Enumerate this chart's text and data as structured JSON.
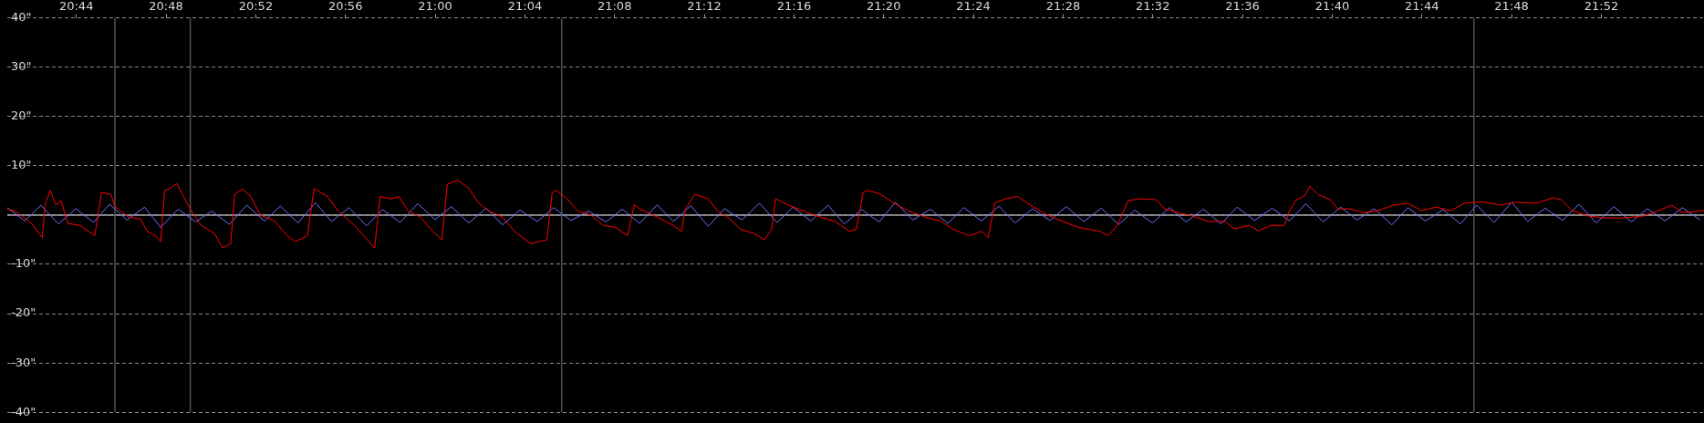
{
  "chart_data": {
    "type": "line",
    "xlim": [
      20.682,
      21.943
    ],
    "xticks": [
      {
        "value": 20.7333,
        "label": "20:44"
      },
      {
        "value": 20.8,
        "label": "20:48"
      },
      {
        "value": 20.8667,
        "label": "20:52"
      },
      {
        "value": 20.9333,
        "label": "20:56"
      },
      {
        "value": 21,
        "label": "21:00"
      },
      {
        "value": 21.0667,
        "label": "21:04"
      },
      {
        "value": 21.1333,
        "label": "21:08"
      },
      {
        "value": 21.2,
        "label": "21:12"
      },
      {
        "value": 21.2667,
        "label": "21:16"
      },
      {
        "value": 21.3333,
        "label": "21:20"
      },
      {
        "value": 21.4,
        "label": "21:24"
      },
      {
        "value": 21.4667,
        "label": "21:28"
      },
      {
        "value": 21.5333,
        "label": "21:32"
      },
      {
        "value": 21.6,
        "label": "21:36"
      },
      {
        "value": 21.6667,
        "label": "21:40"
      },
      {
        "value": 21.7333,
        "label": "21:44"
      },
      {
        "value": 21.8,
        "label": "21:48"
      },
      {
        "value": 21.8667,
        "label": "21:52"
      }
    ],
    "ylim": [
      -40,
      40
    ],
    "yticks": [
      {
        "value": 40,
        "label": "40\""
      },
      {
        "value": 30,
        "label": "30\""
      },
      {
        "value": 20,
        "label": "20\""
      },
      {
        "value": 10,
        "label": "10\""
      },
      {
        "value": 0,
        "label": null
      },
      {
        "value": -10,
        "label": "-10\""
      },
      {
        "value": -20,
        "label": "-20\""
      },
      {
        "value": -30,
        "label": "-30\""
      },
      {
        "value": -40,
        "label": "-40\""
      }
    ],
    "grid": "y",
    "legend": false,
    "marker": "none",
    "line_style": "solid",
    "ref_lines": [
      {
        "axis": "y",
        "value": 0,
        "color": "#a8a8a8"
      },
      {
        "axis": "x",
        "value": 20.762,
        "color": "#505050"
      },
      {
        "axis": "x",
        "value": 20.818,
        "color": "#505050"
      },
      {
        "axis": "x",
        "value": 21.094,
        "color": "#505050"
      },
      {
        "axis": "x",
        "value": 21.772,
        "color": "#505050"
      }
    ],
    "series": [
      {
        "color": "#ff0000",
        "x": [
          20.682,
          20.688,
          20.7,
          20.708,
          20.71,
          20.714,
          20.718,
          20.722,
          20.727,
          20.736,
          20.747,
          20.752,
          20.759,
          20.762,
          20.772,
          20.781,
          20.786,
          20.792,
          20.796,
          20.799,
          20.803,
          20.808,
          20.813,
          20.818,
          20.826,
          20.836,
          20.842,
          20.848,
          20.851,
          20.857,
          20.863,
          20.87,
          20.881,
          20.89,
          20.896,
          20.905,
          20.91,
          20.92,
          20.928,
          20.94,
          20.947,
          20.955,
          20.959,
          20.967,
          20.973,
          20.98,
          20.989,
          20.998,
          21.005,
          21.009,
          21.017,
          21.025,
          21.032,
          21.04,
          21.05,
          21.059,
          21.071,
          21.083,
          21.087,
          21.09,
          21.098,
          21.106,
          21.116,
          21.125,
          21.134,
          21.143,
          21.148,
          21.152,
          21.165,
          21.177,
          21.183,
          21.186,
          21.193,
          21.203,
          21.21,
          21.219,
          21.227,
          21.237,
          21.245,
          21.25,
          21.253,
          21.262,
          21.274,
          21.286,
          21.297,
          21.308,
          21.313,
          21.318,
          21.322,
          21.331,
          21.343,
          21.352,
          21.364,
          21.376,
          21.385,
          21.397,
          21.406,
          21.411,
          21.416,
          21.424,
          21.433,
          21.442,
          21.455,
          21.466,
          21.478,
          21.494,
          21.5,
          21.507,
          21.515,
          21.523,
          21.536,
          21.542,
          21.552,
          21.563,
          21.575,
          21.587,
          21.594,
          21.605,
          21.612,
          21.621,
          21.631,
          21.635,
          21.64,
          21.646,
          21.65,
          21.656,
          21.665,
          21.671,
          21.68,
          21.69,
          21.701,
          21.712,
          21.723,
          21.733,
          21.744,
          21.755,
          21.765,
          21.778,
          21.792,
          21.802,
          21.818,
          21.831,
          21.837,
          21.845,
          21.857,
          21.87,
          21.883,
          21.898,
          21.909,
          21.919,
          21.927,
          21.943
        ],
        "values": [
          1.25,
          0.8,
          -1.7,
          -4.6,
          2.1,
          5,
          2.1,
          2.9,
          -1.7,
          -2.1,
          -4.2,
          4.6,
          4.2,
          1.7,
          -0.4,
          -0.8,
          -3.3,
          -4.2,
          -5.4,
          5,
          5.4,
          6.4,
          3.75,
          1.25,
          -2.1,
          -3.75,
          -6.7,
          -5.8,
          4.2,
          5.25,
          3.75,
          0,
          -1.25,
          -4.2,
          -5.4,
          -4.2,
          5.4,
          3.75,
          0.8,
          -2.1,
          -4.2,
          -6.7,
          3.75,
          3.3,
          3.75,
          0.8,
          -0.4,
          -3.3,
          -5,
          6.25,
          7.1,
          5.4,
          2.5,
          0.8,
          -0.4,
          -3.3,
          -5.8,
          -5,
          4.6,
          5,
          3.3,
          0.8,
          0,
          -2.1,
          -2.5,
          -4.2,
          2.1,
          1.25,
          -0.4,
          -2.1,
          -3.3,
          1.25,
          4.2,
          3.3,
          0.8,
          -0.8,
          -2.9,
          -3.75,
          -5,
          -2.9,
          3.3,
          2.1,
          0.8,
          -0.4,
          -1.25,
          -3.3,
          -2.9,
          4.6,
          5,
          4.2,
          2.1,
          0.8,
          -0.4,
          -1.25,
          -2.9,
          -4.2,
          -3.3,
          -4.6,
          2.5,
          3.3,
          3.75,
          2.1,
          0,
          -1.25,
          -2.5,
          -3.3,
          -4.2,
          -2.1,
          2.9,
          3.3,
          3.1,
          1.25,
          0.5,
          -0.2,
          -1.3,
          -1.3,
          -2.8,
          -2.1,
          -3.2,
          -2.1,
          -2.1,
          0.9,
          3.1,
          3.85,
          5.85,
          4.2,
          3.1,
          1.25,
          1.25,
          0.5,
          0.9,
          2,
          2.4,
          0.9,
          1.6,
          0.9,
          2.4,
          2.7,
          2,
          2.6,
          2.4,
          3.5,
          3.1,
          0.9,
          -0.2,
          -0.6,
          -0.6,
          -0.2,
          0.9,
          2,
          0.5,
          0.9
        ]
      },
      {
        "color": "#6e6eff",
        "x": [
          20.682,
          20.695,
          20.707,
          20.72,
          20.733,
          20.746,
          20.758,
          20.771,
          20.784,
          20.796,
          20.809,
          20.822,
          20.834,
          20.847,
          20.86,
          20.873,
          20.885,
          20.898,
          20.911,
          20.923,
          20.936,
          20.949,
          20.961,
          20.974,
          20.987,
          21.0,
          21.012,
          21.025,
          21.038,
          21.05,
          21.063,
          21.076,
          21.088,
          21.101,
          21.114,
          21.127,
          21.139,
          21.152,
          21.165,
          21.177,
          21.19,
          21.203,
          21.215,
          21.228,
          21.241,
          21.254,
          21.266,
          21.279,
          21.292,
          21.304,
          21.317,
          21.33,
          21.342,
          21.355,
          21.368,
          21.381,
          21.393,
          21.406,
          21.419,
          21.431,
          21.444,
          21.457,
          21.469,
          21.482,
          21.495,
          21.508,
          21.52,
          21.533,
          21.546,
          21.558,
          21.571,
          21.584,
          21.596,
          21.609,
          21.622,
          21.635,
          21.647,
          21.66,
          21.673,
          21.685,
          21.698,
          21.711,
          21.723,
          21.736,
          21.749,
          21.762,
          21.774,
          21.787,
          21.8,
          21.812,
          21.825,
          21.838,
          21.85,
          21.863,
          21.876,
          21.889,
          21.901,
          21.914,
          21.927,
          21.94
        ],
        "values": [
          1.5,
          -1.2,
          2.0,
          -1.8,
          1.3,
          -1.5,
          2.2,
          -1.0,
          1.6,
          -2.5,
          1.2,
          -1.4,
          0.8,
          -1.9,
          2.0,
          -1.2,
          1.8,
          -1.6,
          2.5,
          -1.3,
          1.5,
          -2.2,
          1.1,
          -1.5,
          2.3,
          -0.9,
          1.7,
          -1.6,
          1.4,
          -2.0,
          1.0,
          -1.3,
          1.5,
          -1.1,
          0.8,
          -1.4,
          1.2,
          -1.7,
          2.1,
          -1.3,
          1.9,
          -2.3,
          1.3,
          -1.0,
          2.4,
          -1.5,
          1.6,
          -1.2,
          2.0,
          -1.8,
          1.1,
          -1.4,
          2.6,
          -1.0,
          1.2,
          -1.7,
          1.5,
          -1.2,
          1.8,
          -1.6,
          1.3,
          -1.1,
          1.7,
          -1.3,
          1.4,
          -1.9,
          1.0,
          -1.6,
          1.5,
          -1.4,
          1.2,
          -1.8,
          1.6,
          -1.1,
          1.4,
          -1.2,
          2.3,
          -1.4,
          1.6,
          -1.0,
          1.3,
          -2.0,
          1.5,
          -1.2,
          1.1,
          -1.8,
          2.0,
          -1.5,
          2.6,
          -1.3,
          1.4,
          -1.1,
          2.2,
          -1.6,
          1.7,
          -1.4,
          1.3,
          -1.2,
          1.5,
          -1.0
        ]
      }
    ]
  }
}
